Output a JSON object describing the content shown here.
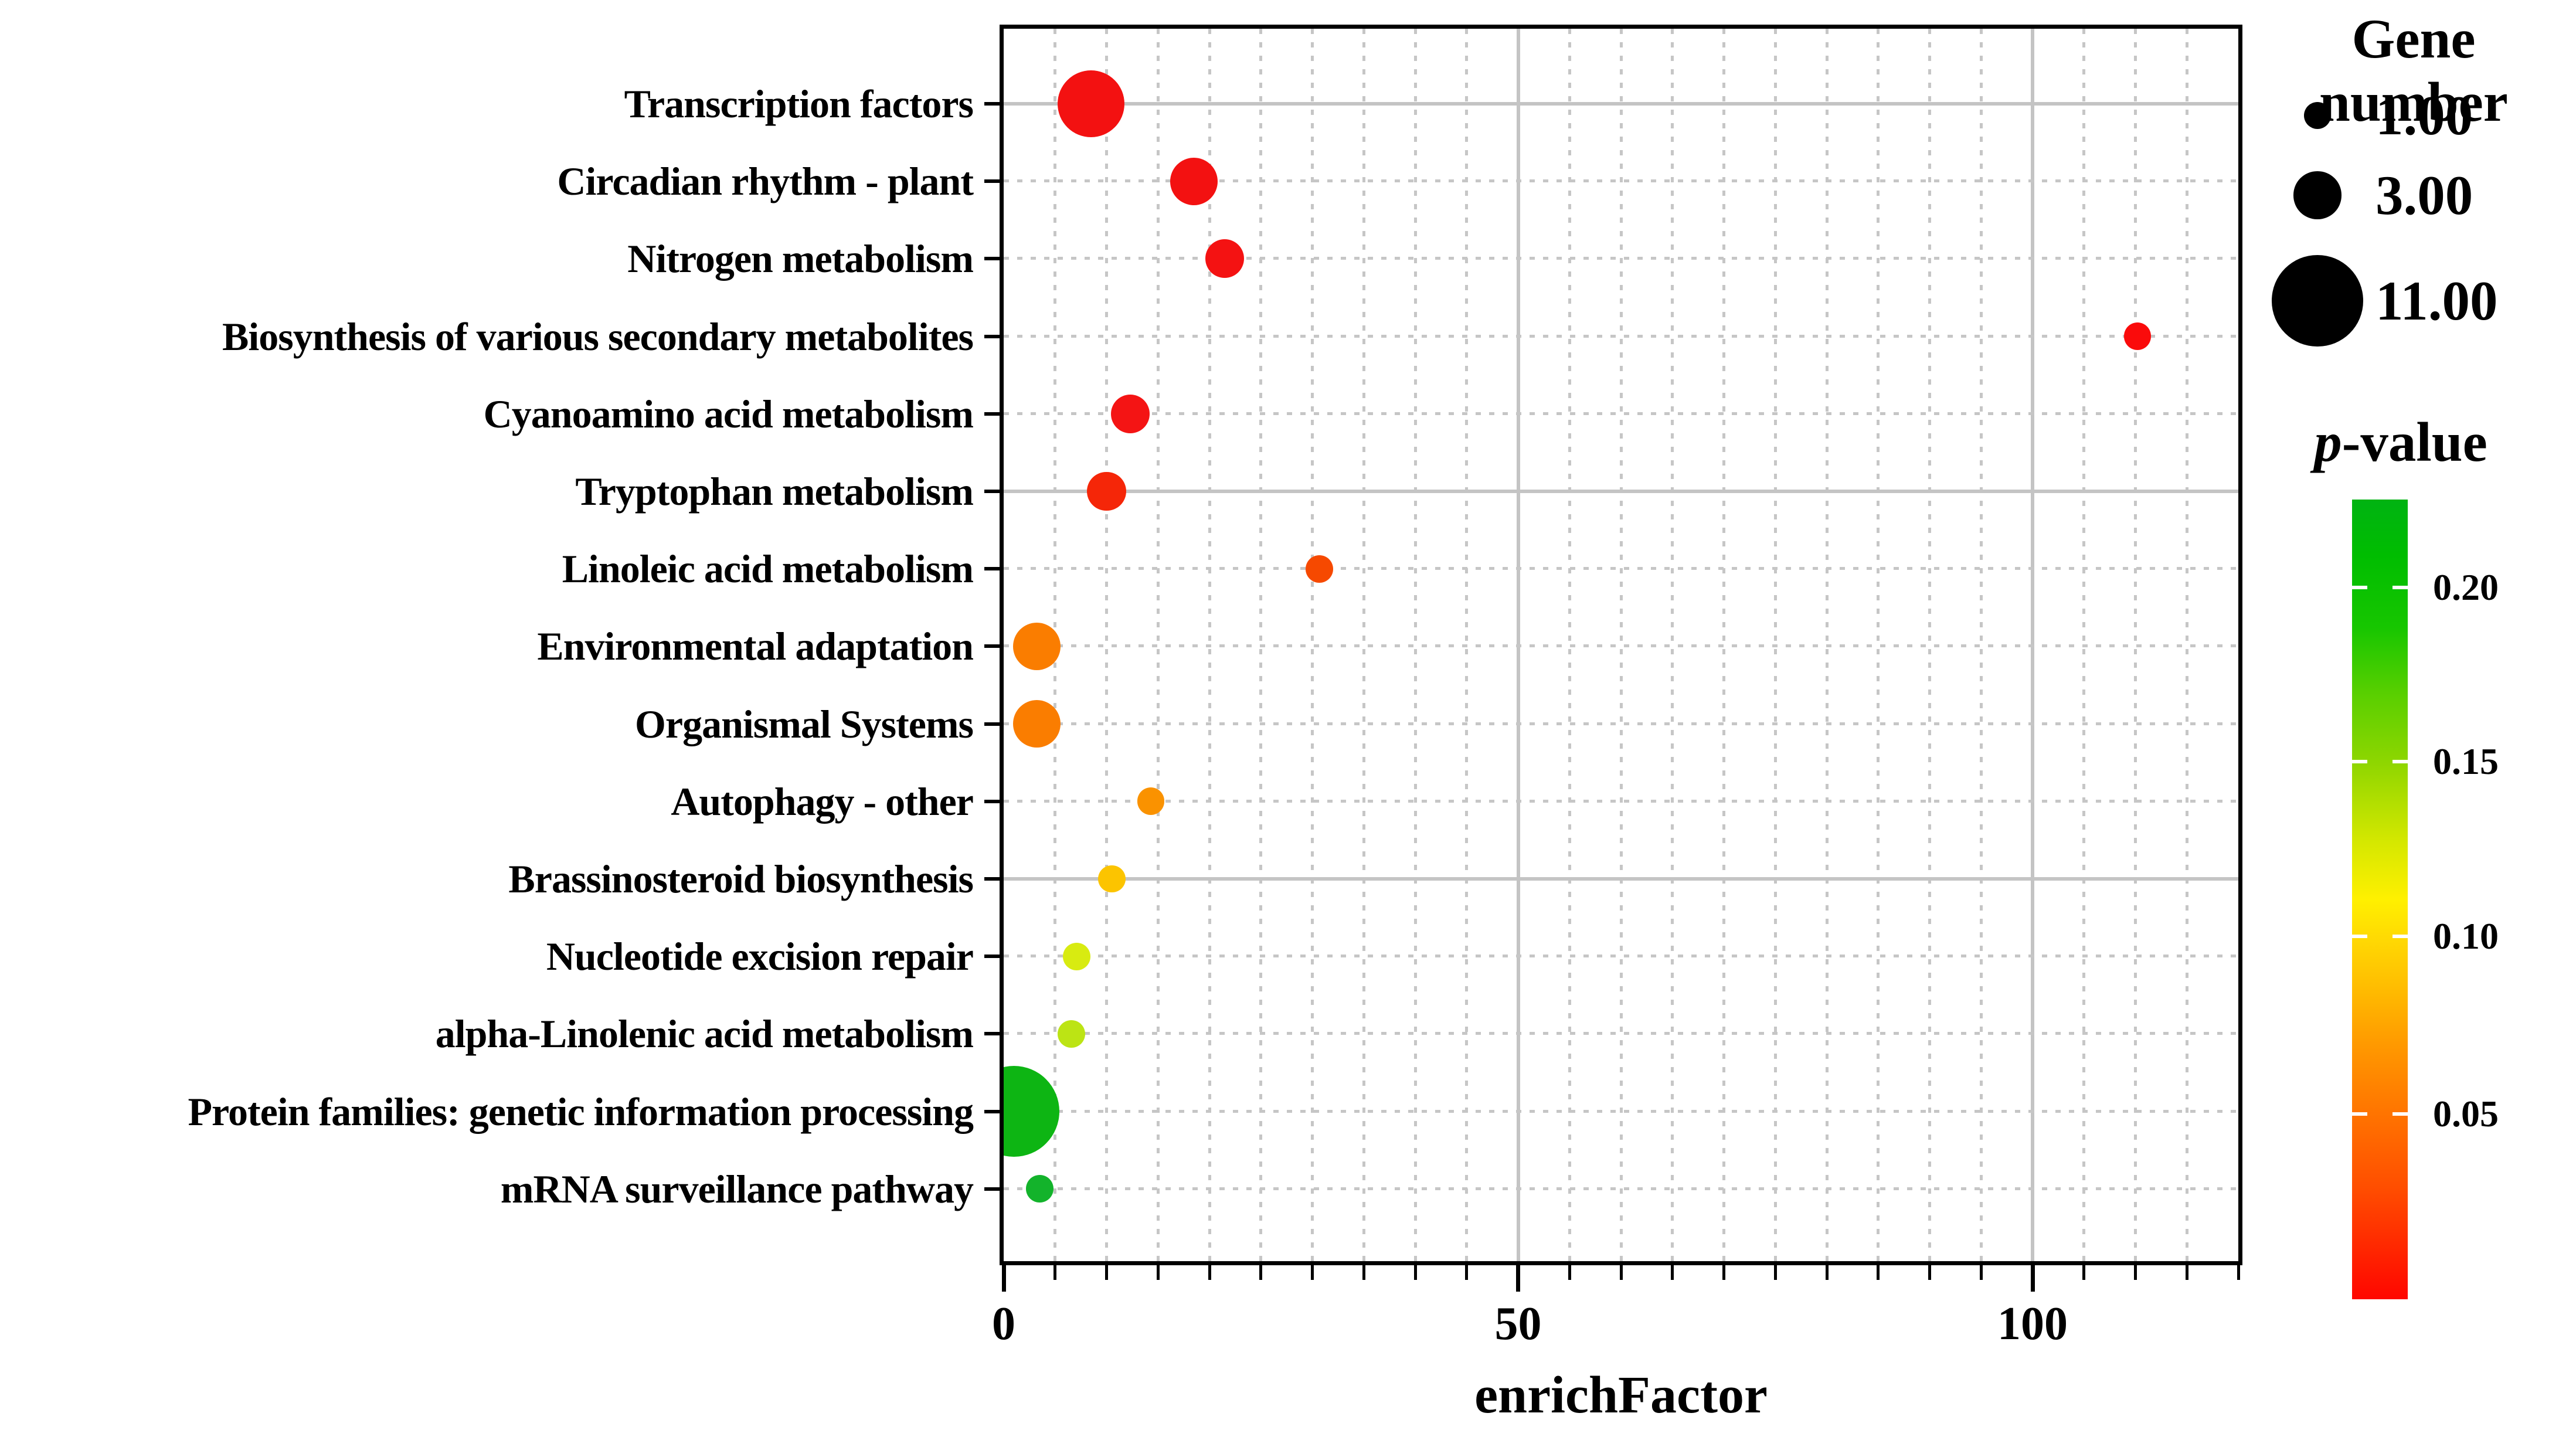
{
  "chart_data": {
    "type": "scatter",
    "title": "",
    "xlabel": "enrichFactor",
    "x_axis": {
      "min": 0,
      "max": 120,
      "major_ticks": [
        0,
        50,
        100
      ],
      "major_tick_labels": [
        "0",
        "50",
        "100"
      ],
      "minor_tick_step": 5
    },
    "grid": {
      "h_solid_rows": [
        0,
        5,
        10
      ],
      "v_solid_values": [
        50,
        100
      ],
      "minor_dotted": true
    },
    "categories": [
      "Transcription factors",
      "Circadian rhythm - plant",
      "Nitrogen metabolism",
      "Biosynthesis of various secondary metabolites",
      "Cyanoamino acid metabolism",
      "Tryptophan metabolism",
      "Linoleic acid metabolism",
      "Environmental adaptation",
      "Organismal Systems",
      "Autophagy - other",
      "Brassinosteroid biosynthesis",
      "Nucleotide excision repair",
      "alpha-Linolenic acid metabolism",
      "Protein families: genetic information processing",
      "mRNA surveillance pathway"
    ],
    "points": [
      {
        "category": "Transcription factors",
        "enrich_factor": 8.5,
        "gene_number": 6,
        "p_value_est": 0.01,
        "color": "#f31111"
      },
      {
        "category": "Circadian rhythm - plant",
        "enrich_factor": 18.5,
        "gene_number": 3,
        "p_value_est": 0.012,
        "color": "#f31111"
      },
      {
        "category": "Nitrogen metabolism",
        "enrich_factor": 21.5,
        "gene_number": 2,
        "p_value_est": 0.013,
        "color": "#f41212"
      },
      {
        "category": "Biosynthesis of various secondary metabolites",
        "enrich_factor": 110.2,
        "gene_number": 1,
        "p_value_est": 0.008,
        "color": "#fa0b0b"
      },
      {
        "category": "Cyanoamino acid metabolism",
        "enrich_factor": 12.3,
        "gene_number": 2,
        "p_value_est": 0.015,
        "color": "#f41414"
      },
      {
        "category": "Tryptophan metabolism",
        "enrich_factor": 10.0,
        "gene_number": 2,
        "p_value_est": 0.02,
        "color": "#f52608"
      },
      {
        "category": "Linoleic acid metabolism",
        "enrich_factor": 30.7,
        "gene_number": 1,
        "p_value_est": 0.035,
        "color": "#f64900"
      },
      {
        "category": "Environmental adaptation",
        "enrich_factor": 3.2,
        "gene_number": 3,
        "p_value_est": 0.06,
        "color": "#fa7d00"
      },
      {
        "category": "Organismal Systems",
        "enrich_factor": 3.2,
        "gene_number": 3,
        "p_value_est": 0.062,
        "color": "#fa7d00"
      },
      {
        "category": "Autophagy - other",
        "enrich_factor": 14.3,
        "gene_number": 1,
        "p_value_est": 0.07,
        "color": "#fa9200"
      },
      {
        "category": "Brassinosteroid biosynthesis",
        "enrich_factor": 10.5,
        "gene_number": 1,
        "p_value_est": 0.09,
        "color": "#fcc400"
      },
      {
        "category": "Nucleotide excision repair",
        "enrich_factor": 7.1,
        "gene_number": 1,
        "p_value_est": 0.125,
        "color": "#d8eb11"
      },
      {
        "category": "alpha-Linolenic acid metabolism",
        "enrich_factor": 6.6,
        "gene_number": 1,
        "p_value_est": 0.135,
        "color": "#bce414"
      },
      {
        "category": "Protein families: genetic information processing",
        "enrich_factor": 1.0,
        "gene_number": 11,
        "p_value_est": 0.21,
        "color": "#0db513"
      },
      {
        "category": "mRNA surveillance pathway",
        "enrich_factor": 3.5,
        "gene_number": 1,
        "p_value_est": 0.195,
        "color": "#13b32b"
      }
    ],
    "size_legend": {
      "title": "Gene number",
      "items": [
        {
          "label": "1.00",
          "gene_number": 1
        },
        {
          "label": "3.00",
          "gene_number": 3
        },
        {
          "label": "11.00",
          "gene_number": 11
        }
      ]
    },
    "color_legend": {
      "title": "p-value",
      "tick_labels": [
        "0.20",
        "0.15",
        "0.10",
        "0.05"
      ],
      "tick_fractions_from_top": [
        0.11,
        0.328,
        0.546,
        0.768
      ],
      "top_color": "#00b312",
      "bottom_color": "#ff0600",
      "range_approx": [
        0.0,
        0.225
      ]
    }
  }
}
